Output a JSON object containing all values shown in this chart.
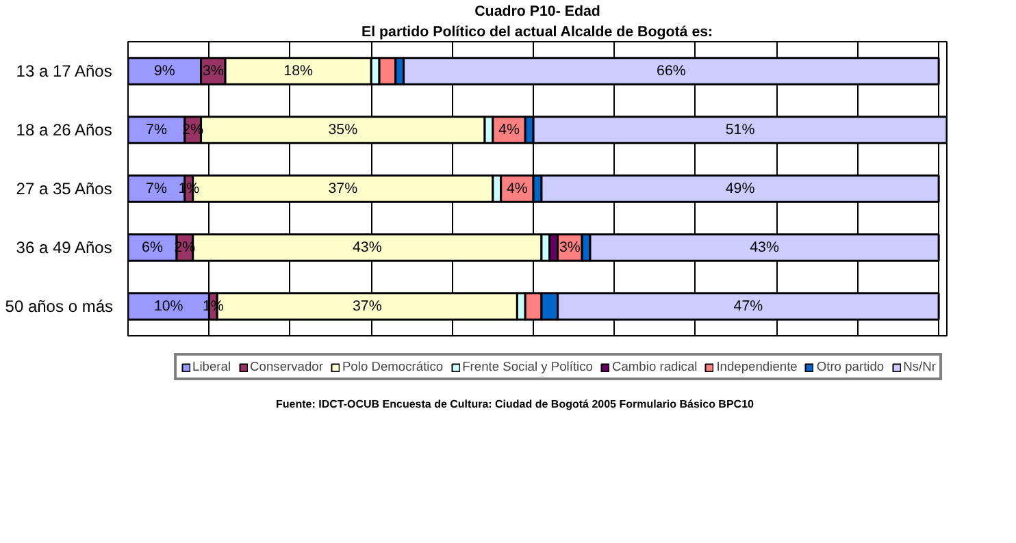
{
  "chart_data": {
    "type": "bar",
    "orientation": "horizontal",
    "stacked": true,
    "title": "Cuadro P10- Edad",
    "subtitle": "El partido Político del actual Alcalde de Bogotá es:",
    "categories": [
      "13 a 17 Años",
      "18 a 26 Años",
      "27 a 35 Años",
      "36 a 49 Años",
      "50 años o más"
    ],
    "series": [
      {
        "name": "Liberal",
        "color": "#9999ff",
        "values": [
          9,
          7,
          7,
          6,
          10
        ],
        "value_labels": [
          "9%",
          "7%",
          "7%",
          "6%",
          "10%"
        ]
      },
      {
        "name": "Conservador",
        "color": "#993366",
        "values": [
          3,
          2,
          1,
          2,
          1
        ],
        "value_labels": [
          "3%",
          "2%",
          "1%",
          "2%",
          "1%"
        ]
      },
      {
        "name": "Polo Democrático",
        "color": "#ffffcc",
        "values": [
          18,
          35,
          37,
          43,
          37
        ],
        "value_labels": [
          "18%",
          "35%",
          "37%",
          "43%",
          "37%"
        ]
      },
      {
        "name": "Frente Social y Político",
        "color": "#ccffff",
        "values": [
          1,
          1,
          1,
          1,
          1
        ],
        "value_labels": [
          null,
          null,
          null,
          null,
          null
        ]
      },
      {
        "name": "Cambio radical",
        "color": "#660066",
        "values": [
          0,
          0,
          0,
          1,
          0
        ],
        "value_labels": [
          null,
          null,
          null,
          null,
          null
        ]
      },
      {
        "name": "Independiente",
        "color": "#ff8080",
        "values": [
          2,
          4,
          4,
          3,
          2
        ],
        "value_labels": [
          null,
          "4%",
          "4%",
          "3%",
          null
        ]
      },
      {
        "name": "Otro partido",
        "color": "#0066cc",
        "values": [
          1,
          1,
          1,
          1,
          2
        ],
        "value_labels": [
          null,
          null,
          null,
          null,
          null
        ]
      },
      {
        "name": "Ns/Nr",
        "color": "#ccccff",
        "values": [
          66,
          51,
          49,
          43,
          47
        ],
        "value_labels": [
          "66%",
          "51%",
          "49%",
          "43%",
          "47%"
        ]
      }
    ],
    "tick_labels": "y",
    "grid": "x",
    "legend": "bottom",
    "annotations": [
      "Fuente: IDCT-OCUB Encuesta de Cultura: Ciudad de Bogotá 2005 Formulario Básico BPC10"
    ]
  }
}
